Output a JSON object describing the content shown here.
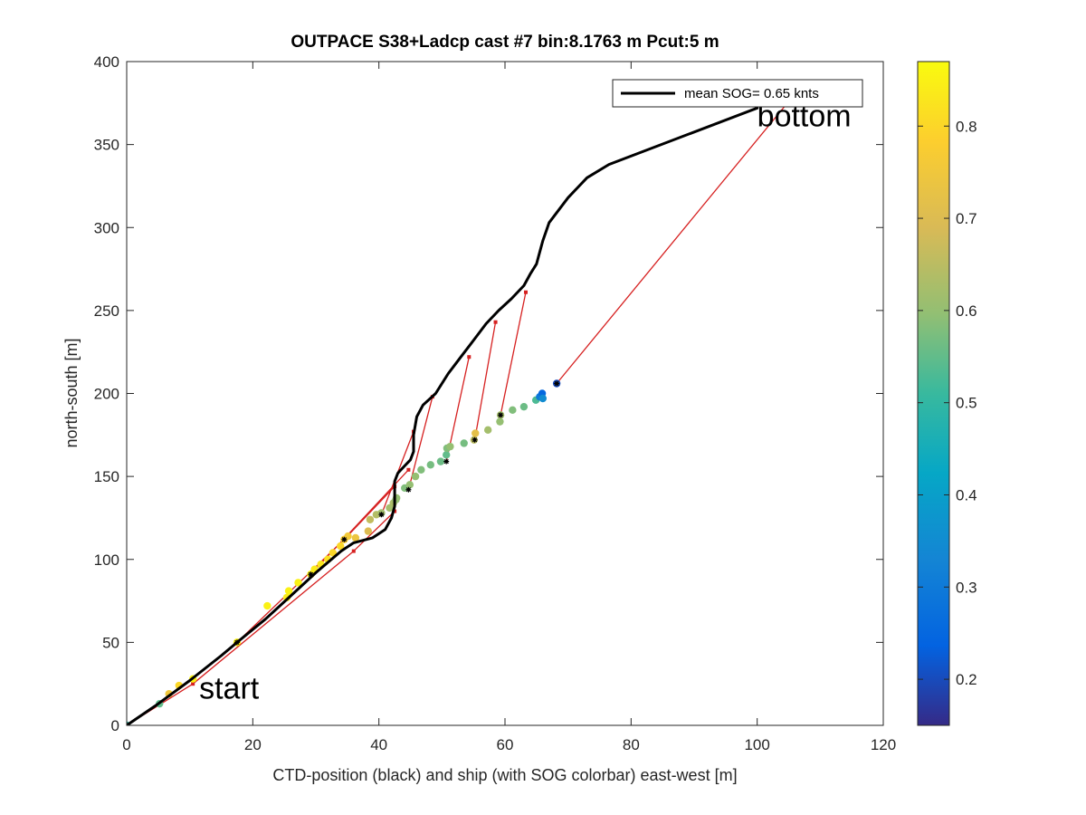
{
  "chart_data": {
    "type": "scatter",
    "title": "OUTPACE S38+Ladcp cast #7 bin:8.1763 m  Pcut:5 m",
    "xlabel": "CTD-position (black) and ship (with SOG colorbar) east-west [m]",
    "ylabel": "north-south [m]",
    "xlim": [
      0,
      120
    ],
    "ylim": [
      0,
      400
    ],
    "xticks": [
      "0",
      "20",
      "40",
      "60",
      "80",
      "100",
      "120"
    ],
    "yticks": [
      "0",
      "50",
      "100",
      "150",
      "200",
      "250",
      "300",
      "350",
      "400"
    ],
    "grid": false,
    "legend": {
      "location": "top-right",
      "entries": [
        "mean SOG=  0.65 knts"
      ]
    },
    "annotations": [
      {
        "text": "start",
        "x": 11.5,
        "y": 16
      },
      {
        "text": "bottom",
        "x": 100,
        "y": 361
      }
    ],
    "colorbar": {
      "range": [
        0.15,
        0.87
      ],
      "ticks": [
        "0.2",
        "0.3",
        "0.4",
        "0.5",
        "0.6",
        "0.7",
        "0.8"
      ],
      "colormap": "parula"
    },
    "series": [
      {
        "name": "mean SOG=  0.65 knts",
        "kind": "ctd-track",
        "color": "#000000",
        "x": [
          0,
          5,
          10,
          15,
          17.5,
          22,
          26,
          30,
          34,
          36,
          39,
          41,
          42,
          42.5,
          42.5,
          43,
          44,
          45,
          45.5,
          45.5,
          46,
          47,
          49,
          51,
          53,
          55,
          57,
          59,
          61,
          63,
          64,
          65,
          65.5,
          66,
          67,
          70,
          73,
          76.5,
          100
        ],
        "y": [
          0,
          13,
          27,
          42,
          50,
          64,
          78,
          92,
          105,
          110,
          113,
          118,
          125,
          132,
          147,
          152,
          156,
          160,
          165,
          175,
          186,
          193,
          200,
          212,
          222,
          232,
          242,
          250,
          257,
          265,
          272,
          278,
          285,
          292,
          303,
          318,
          330,
          338,
          372
        ]
      },
      {
        "name": "",
        "kind": "ship-sog",
        "x": [
          0,
          5.2,
          6.7,
          8.3,
          10.5,
          17.5,
          22.3,
          25.4,
          25.7,
          27.2,
          29.2,
          29.8,
          30.8,
          31.9,
          32.7,
          33.9,
          34.5,
          35.1,
          36.3,
          38.3,
          38.6,
          39.6,
          40.4,
          41.7,
          42.3,
          42.7,
          42.8,
          44.1,
          44.9,
          45.8,
          46.7,
          48.2,
          49.8,
          50.7,
          50.8,
          51.3,
          53.5,
          55.1,
          55.3,
          57.3,
          59.2,
          59.3,
          61.2,
          63.0,
          64.9,
          65.5,
          65.9,
          66.0,
          68.2
        ],
        "y": [
          0,
          13,
          19,
          24,
          28,
          50,
          72,
          77,
          81,
          86,
          91,
          94,
          97,
          100,
          104,
          108,
          112,
          114,
          113,
          117,
          124,
          127,
          128,
          131,
          134,
          136,
          137,
          143,
          145,
          150,
          154,
          157,
          159,
          163,
          167,
          168,
          170,
          172,
          176,
          178,
          183,
          187,
          190,
          192,
          196,
          198,
          200,
          197,
          206
        ],
        "sog": [
          0.5,
          0.55,
          0.75,
          0.8,
          0.85,
          0.85,
          0.85,
          0.84,
          0.85,
          0.85,
          0.85,
          0.84,
          0.83,
          0.82,
          0.8,
          0.8,
          0.78,
          0.76,
          0.74,
          0.7,
          0.66,
          0.64,
          0.62,
          0.62,
          0.63,
          0.6,
          0.6,
          0.58,
          0.6,
          0.6,
          0.58,
          0.57,
          0.56,
          0.55,
          0.58,
          0.6,
          0.57,
          0.65,
          0.72,
          0.62,
          0.6,
          0.62,
          0.58,
          0.56,
          0.53,
          0.3,
          0.25,
          0.35,
          0.2
        ]
      },
      {
        "name": "",
        "kind": "connector-lines",
        "color": "#d62020",
        "segments": [
          [
            [
              0,
              0
            ],
            [
              10.5,
              25
            ]
          ],
          [
            [
              10.5,
              25
            ],
            [
              36,
              105
            ]
          ],
          [
            [
              36,
              105
            ],
            [
              42.5,
              129
            ]
          ],
          [
            [
              17.5,
              50
            ],
            [
              34.5,
              112
            ]
          ],
          [
            [
              34.5,
              112
            ],
            [
              42.5,
              144
            ]
          ],
          [
            [
              29.2,
              91
            ],
            [
              44.7,
              154
            ]
          ],
          [
            [
              40.4,
              127
            ],
            [
              45.5,
              177
            ]
          ],
          [
            [
              44.7,
              142
            ],
            [
              48.5,
              198
            ]
          ],
          [
            [
              50.7,
              159
            ],
            [
              54.3,
              222
            ]
          ],
          [
            [
              55.2,
              172
            ],
            [
              58.5,
              243
            ]
          ],
          [
            [
              59.3,
              187
            ],
            [
              63.3,
              261
            ]
          ],
          [
            [
              68.2,
              206
            ],
            [
              105,
              376
            ]
          ]
        ]
      },
      {
        "name": "",
        "kind": "ctd-markers",
        "color": "#000000",
        "x": [
          0,
          17.5,
          29.2,
          34.5,
          40.4,
          44.7,
          50.7,
          55.2,
          59.3,
          68.2
        ],
        "y": [
          0,
          50,
          91,
          112,
          127,
          142,
          159,
          172,
          187,
          206
        ]
      }
    ]
  }
}
